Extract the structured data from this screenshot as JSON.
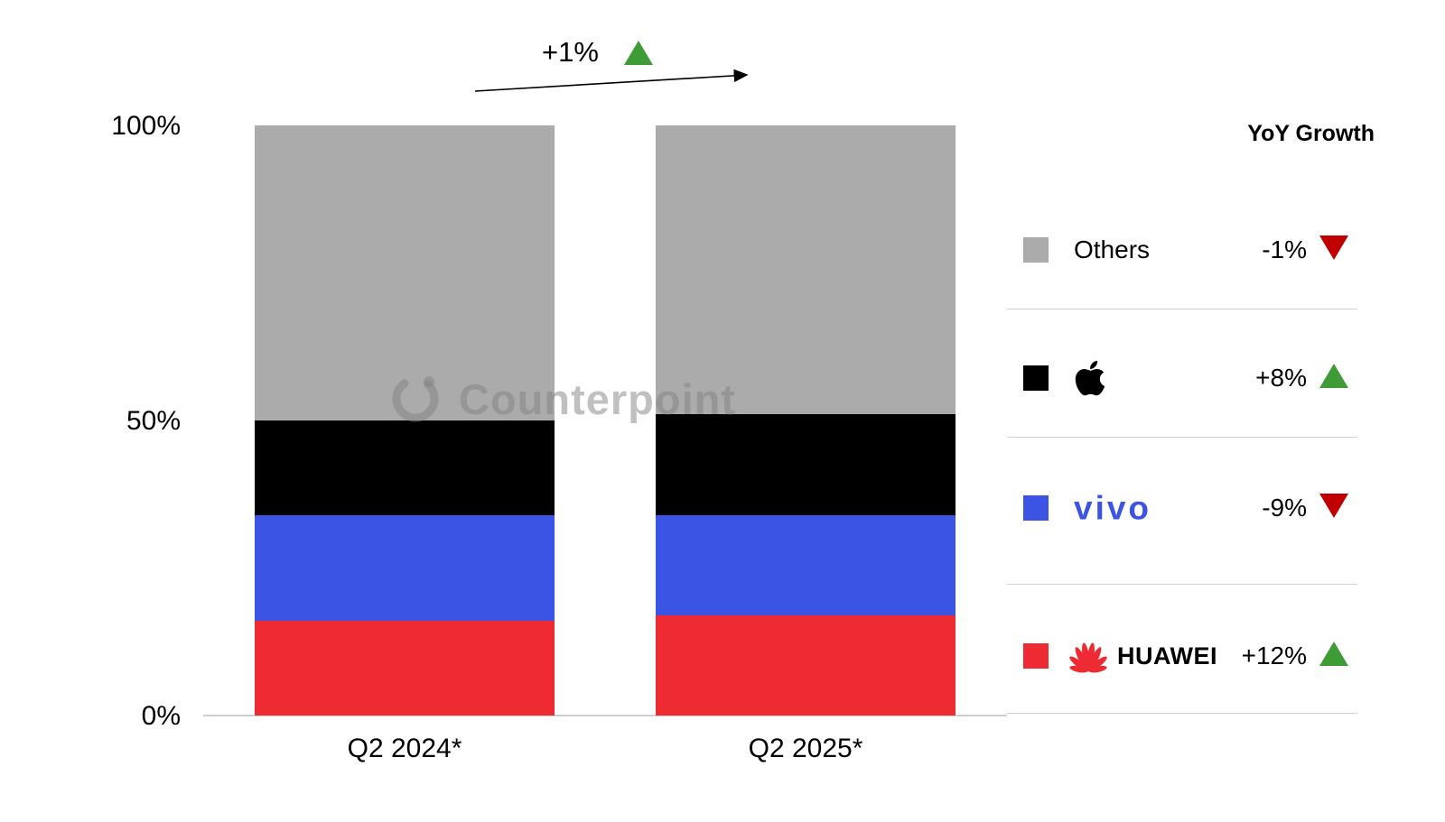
{
  "chart_data": {
    "type": "bar",
    "stacked": true,
    "title": "",
    "categories": [
      "Q2 2024*",
      "Q2 2025*"
    ],
    "series": [
      {
        "name": "HUAWEI",
        "color": "#EE2B33",
        "values": [
          16,
          17
        ],
        "yoy": "+12%",
        "yoy_direction": "up"
      },
      {
        "name": "vivo",
        "color": "#3C54E4",
        "values": [
          18,
          17
        ],
        "yoy": "-9%",
        "yoy_direction": "down"
      },
      {
        "name": "Apple",
        "color": "#000000",
        "values": [
          16,
          17
        ],
        "yoy": "+8%",
        "yoy_direction": "up"
      },
      {
        "name": "Others",
        "color": "#ABABAB",
        "values": [
          50,
          49
        ],
        "yoy": "-1%",
        "yoy_direction": "down"
      }
    ],
    "ylim": [
      0,
      100
    ],
    "y_ticks": [
      {
        "label": "100%",
        "value": 100
      },
      {
        "label": "50%",
        "value": 50
      },
      {
        "label": "0%",
        "value": 0
      }
    ],
    "grid": false,
    "legend_position": "right",
    "legend_header": "YoY Growth",
    "legend_order": [
      "Others",
      "Apple",
      "vivo",
      "HUAWEI"
    ],
    "annotation": {
      "label": "+1%",
      "direction": "up"
    },
    "watermark": "Counterpoint"
  },
  "colors": {
    "growth_up": "#3E9B35",
    "growth_down": "#C00000"
  }
}
